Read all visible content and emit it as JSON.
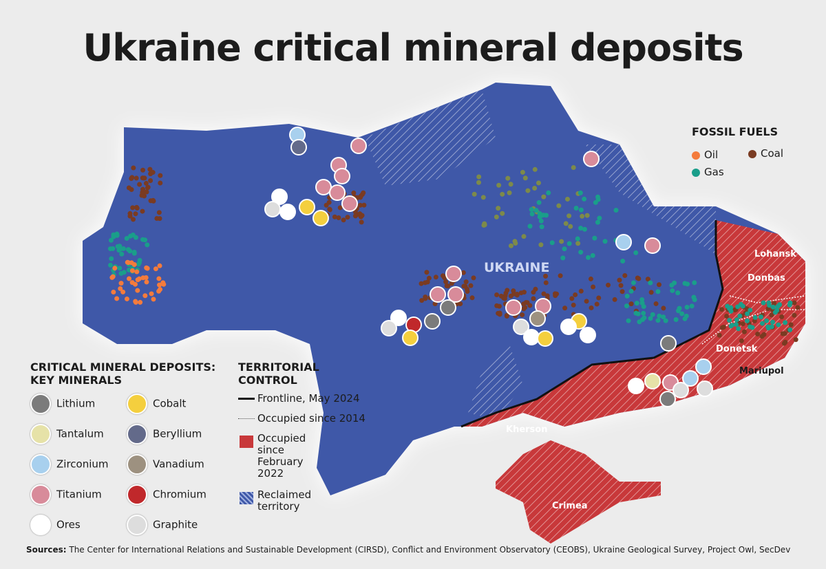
{
  "title": "Ukraine critical mineral deposits",
  "map_labels": [
    "UKRAINE",
    "Lohansk",
    "Donbas",
    "Donetsk",
    "Mariupol",
    "Kherson",
    "Crimea"
  ],
  "fossil_fuels": {
    "title": "FOSSIL FUELS",
    "items": [
      "Oil",
      "Coal",
      "Gas"
    ]
  },
  "minerals_legend": {
    "title": "CRITICAL MINERAL DEPOSITS: KEY MINERALS",
    "items": [
      "Lithium",
      "Cobalt",
      "Tantalum",
      "Beryllium",
      "Zirconium",
      "Vanadium",
      "Titanium",
      "Chromium",
      "Ores",
      "Graphite"
    ]
  },
  "territorial_legend": {
    "title": "TERRITORIAL CONTROL",
    "items": [
      "Frontline, May 2024",
      "Occupied since 2014",
      "Occupied since February 2022",
      "Reclaimed territory"
    ]
  },
  "sources": {
    "label": "Sources:",
    "text": "The Center for International Relations and Sustainable Development (CIRSD), Conflict and Environment Observatory (CEOBS), Ukraine Geological Survey, Project Owl, SecDev"
  }
}
